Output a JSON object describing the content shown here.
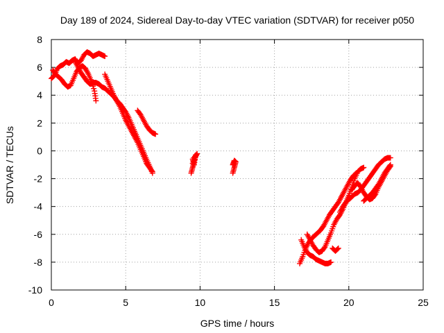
{
  "chart_data": {
    "type": "scatter",
    "title": "Day 189 of 2024, Sidereal Day-to-day VTEC variation (SDTVAR) for receiver p050",
    "xlabel": "GPS time / hours",
    "ylabel": "SDTVAR / TECUs",
    "xlim": [
      0,
      25
    ],
    "ylim": [
      -10,
      8
    ],
    "xticks": [
      "0",
      "5",
      "10",
      "15",
      "20",
      "25"
    ],
    "yticks": [
      "8",
      "6",
      "4",
      "2",
      "0",
      "-2",
      "-4",
      "-6",
      "-8",
      "-10"
    ],
    "grid": true,
    "marker": "+",
    "color": "#ff0000",
    "series": [
      {
        "name": "arc-1",
        "x": [
          0.0,
          0.2,
          0.4,
          0.6,
          0.8,
          1.0,
          1.2,
          1.4,
          1.6,
          1.8,
          2.0,
          2.2,
          2.4,
          2.6,
          2.8,
          3.0,
          3.2,
          3.4,
          3.6
        ],
        "y": [
          5.2,
          5.4,
          5.9,
          6.1,
          6.2,
          6.4,
          6.3,
          6.5,
          6.6,
          6.3,
          6.5,
          6.9,
          7.1,
          7.0,
          6.8,
          6.9,
          7.0,
          6.9,
          6.8
        ]
      },
      {
        "name": "arc-2",
        "x": [
          0.1,
          0.3,
          0.5,
          0.7,
          0.9,
          1.1,
          1.3,
          1.5,
          1.7,
          1.9,
          2.1,
          2.3,
          2.5,
          2.7,
          2.9,
          3.0
        ],
        "y": [
          5.8,
          5.5,
          5.3,
          5.1,
          4.8,
          4.6,
          4.7,
          5.2,
          5.7,
          6.0,
          6.1,
          5.9,
          5.5,
          5.0,
          4.3,
          3.6
        ]
      },
      {
        "name": "arc-3",
        "x": [
          1.6,
          1.8,
          2.0,
          2.2,
          2.4,
          2.6,
          2.8,
          3.0,
          3.2,
          3.4,
          3.6,
          3.8,
          4.0,
          4.2,
          4.4,
          4.6,
          4.8,
          5.0,
          5.2,
          5.4,
          5.6,
          5.8,
          6.0,
          6.2,
          6.4,
          6.6,
          6.8
        ],
        "y": [
          6.4,
          6.0,
          5.6,
          5.3,
          5.0,
          4.8,
          4.9,
          4.9,
          4.8,
          4.6,
          4.5,
          4.3,
          4.1,
          3.9,
          3.6,
          3.4,
          3.1,
          2.8,
          2.4,
          1.9,
          1.4,
          0.9,
          0.4,
          -0.1,
          -0.6,
          -1.1,
          -1.6
        ]
      },
      {
        "name": "arc-4",
        "x": [
          3.6,
          3.8,
          4.0,
          4.2,
          4.4,
          4.6,
          4.8,
          5.0,
          5.2,
          5.4,
          5.6,
          5.8,
          6.0,
          6.2,
          6.4,
          6.6,
          6.8
        ],
        "y": [
          5.5,
          5.0,
          4.5,
          4.0,
          3.6,
          3.2,
          2.7,
          2.2,
          1.8,
          1.4,
          1.0,
          0.6,
          0.1,
          -0.4,
          -0.9,
          -1.2,
          -1.5
        ]
      },
      {
        "name": "arc-5",
        "x": [
          5.8,
          6.0,
          6.2,
          6.4,
          6.6,
          6.8,
          7.0
        ],
        "y": [
          2.9,
          2.6,
          2.2,
          1.8,
          1.5,
          1.3,
          1.2
        ]
      },
      {
        "name": "arc-6",
        "x": [
          9.4,
          9.5,
          9.6,
          9.7,
          9.8,
          9.5,
          9.6,
          9.7,
          9.5
        ],
        "y": [
          -1.6,
          -1.2,
          -0.8,
          -0.4,
          -0.2,
          -0.6,
          -1.0,
          -0.3,
          -0.9
        ]
      },
      {
        "name": "arc-7",
        "x": [
          12.2,
          12.3,
          12.4,
          12.3,
          12.2
        ],
        "y": [
          -1.6,
          -1.2,
          -0.8,
          -0.7,
          -1.0
        ]
      },
      {
        "name": "arc-8",
        "x": [
          16.7,
          16.9,
          17.1,
          17.3,
          17.5,
          17.7,
          17.9,
          18.1,
          18.3,
          18.5,
          18.7,
          18.9,
          19.1,
          19.3,
          19.5,
          19.7,
          19.9,
          20.1,
          20.3,
          20.5
        ],
        "y": [
          -8.1,
          -7.6,
          -7.0,
          -6.6,
          -6.3,
          -6.1,
          -5.9,
          -5.7,
          -5.4,
          -5.0,
          -4.6,
          -4.3,
          -4.0,
          -3.7,
          -3.3,
          -2.9,
          -2.5,
          -2.1,
          -1.8,
          -1.6
        ]
      },
      {
        "name": "arc-9",
        "x": [
          16.8,
          17.0,
          17.2,
          17.4,
          17.6,
          17.8,
          18.0,
          18.2,
          18.4,
          18.6,
          18.8
        ],
        "y": [
          -6.4,
          -6.9,
          -7.3,
          -7.5,
          -7.6,
          -7.8,
          -7.9,
          -8.0,
          -8.1,
          -8.1,
          -8.0
        ]
      },
      {
        "name": "arc-10",
        "x": [
          17.2,
          17.4,
          17.6,
          17.8,
          18.0,
          18.2,
          18.4,
          18.6,
          18.8,
          19.0,
          19.2,
          19.4,
          19.6,
          19.8,
          20.0,
          20.2,
          20.4,
          20.6,
          20.8,
          21.0
        ],
        "y": [
          -6.0,
          -6.4,
          -6.8,
          -7.1,
          -7.3,
          -7.2,
          -6.9,
          -6.4,
          -5.9,
          -5.3,
          -4.9,
          -4.6,
          -4.2,
          -3.7,
          -3.2,
          -2.6,
          -2.0,
          -1.5,
          -1.3,
          -1.2
        ]
      },
      {
        "name": "arc-11",
        "x": [
          19.4,
          19.6,
          19.8,
          20.0,
          20.2,
          20.4,
          20.6,
          20.8,
          21.0,
          21.2,
          21.4,
          21.6,
          21.8,
          22.0,
          22.2,
          22.4,
          22.6,
          22.8
        ],
        "y": [
          -4.4,
          -4.0,
          -3.7,
          -3.5,
          -3.3,
          -3.1,
          -3.0,
          -2.8,
          -2.5,
          -2.2,
          -1.9,
          -1.6,
          -1.3,
          -1.0,
          -0.8,
          -0.6,
          -0.5,
          -0.5
        ]
      },
      {
        "name": "arc-12",
        "x": [
          20.2,
          20.4,
          20.6,
          20.8,
          21.0,
          21.2,
          21.4,
          21.6,
          21.8,
          22.0,
          22.2,
          22.4,
          22.6,
          22.8
        ],
        "y": [
          -2.8,
          -2.5,
          -2.3,
          -2.6,
          -3.0,
          -3.3,
          -3.5,
          -3.4,
          -3.1,
          -2.6,
          -2.2,
          -1.8,
          -1.4,
          -1.1
        ]
      },
      {
        "name": "arc-13",
        "x": [
          21.0,
          21.2,
          21.4,
          21.6,
          21.8,
          22.0,
          22.2,
          22.4,
          22.6,
          22.8
        ],
        "y": [
          -3.6,
          -3.4,
          -3.2,
          -3.0,
          -2.7,
          -2.4,
          -2.0,
          -1.6,
          -1.3,
          -1.0
        ]
      },
      {
        "name": "arc-14",
        "x": [
          18.9,
          19.1,
          19.3
        ],
        "y": [
          -7.0,
          -7.2,
          -7.0
        ]
      }
    ]
  }
}
